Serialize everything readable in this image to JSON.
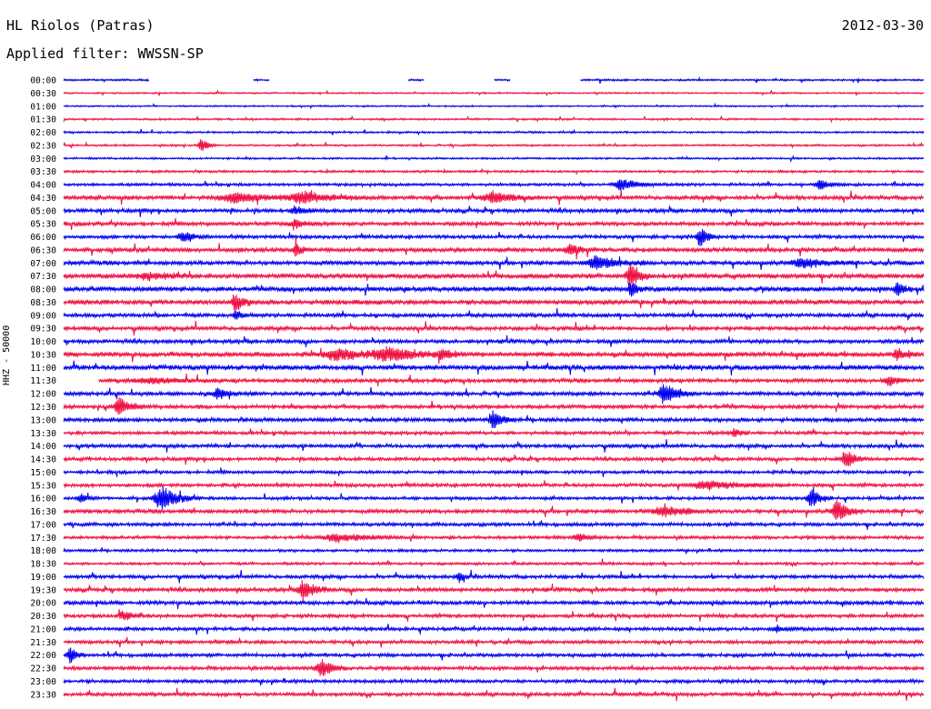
{
  "header": {
    "station": "HL Riolos (Patras)",
    "date": "2012-03-30",
    "filter_label": "Applied filter: WWSSN-SP"
  },
  "channel_label": "HHZ - 50000",
  "colors": {
    "blue": "#0000ee",
    "red": "#ee1144",
    "text": "#000000"
  },
  "chart_data": {
    "type": "line",
    "ylabel": "HHZ - 50000",
    "series_colors": [
      "blue",
      "red"
    ],
    "rows": [
      {
        "time": "00:00",
        "color": "blue",
        "noise": 1,
        "gaps": [
          [
            0.1,
            0.22
          ],
          [
            0.24,
            0.4
          ],
          [
            0.42,
            0.5
          ],
          [
            0.52,
            0.6
          ]
        ],
        "events": []
      },
      {
        "time": "00:30",
        "color": "red",
        "noise": 0.8,
        "gaps": [],
        "events": []
      },
      {
        "time": "01:00",
        "color": "blue",
        "noise": 0.8,
        "gaps": [],
        "events": []
      },
      {
        "time": "01:30",
        "color": "red",
        "noise": 1,
        "gaps": [],
        "events": []
      },
      {
        "time": "02:00",
        "color": "blue",
        "noise": 1,
        "gaps": [],
        "events": []
      },
      {
        "time": "02:30",
        "color": "red",
        "noise": 1,
        "gaps": [],
        "events": [
          {
            "x": 0.16,
            "a": 7,
            "w": 0.006
          }
        ]
      },
      {
        "time": "03:00",
        "color": "blue",
        "noise": 1,
        "gaps": [],
        "events": []
      },
      {
        "time": "03:30",
        "color": "red",
        "noise": 1.2,
        "gaps": [],
        "events": []
      },
      {
        "time": "04:00",
        "color": "blue",
        "noise": 1.5,
        "gaps": [],
        "events": [
          {
            "x": 0.65,
            "a": 6,
            "w": 0.015
          },
          {
            "x": 0.88,
            "a": 5,
            "w": 0.01
          }
        ]
      },
      {
        "time": "04:30",
        "color": "red",
        "noise": 2,
        "gaps": [],
        "events": [
          {
            "x": 0.2,
            "a": 5,
            "w": 0.03
          },
          {
            "x": 0.28,
            "a": 5,
            "w": 0.03
          },
          {
            "x": 0.5,
            "a": 6,
            "w": 0.02
          }
        ]
      },
      {
        "time": "05:00",
        "color": "blue",
        "noise": 2,
        "gaps": [],
        "events": [
          {
            "x": 0.27,
            "a": 4,
            "w": 0.01
          }
        ]
      },
      {
        "time": "05:30",
        "color": "red",
        "noise": 2,
        "gaps": [],
        "events": [
          {
            "x": 0.27,
            "a": 4,
            "w": 0.01
          }
        ]
      },
      {
        "time": "06:00",
        "color": "blue",
        "noise": 1.8,
        "gaps": [],
        "events": [
          {
            "x": 0.74,
            "a": 12,
            "w": 0.006
          },
          {
            "x": 0.14,
            "a": 5,
            "w": 0.01
          }
        ]
      },
      {
        "time": "06:30",
        "color": "red",
        "noise": 2.2,
        "gaps": [],
        "events": [
          {
            "x": 0.59,
            "a": 6,
            "w": 0.01
          },
          {
            "x": 0.27,
            "a": 8,
            "w": 0.005
          }
        ]
      },
      {
        "time": "07:00",
        "color": "blue",
        "noise": 2.2,
        "gaps": [],
        "events": [
          {
            "x": 0.62,
            "a": 6,
            "w": 0.02
          },
          {
            "x": 0.86,
            "a": 5,
            "w": 0.02
          }
        ]
      },
      {
        "time": "07:30",
        "color": "red",
        "noise": 2.5,
        "gaps": [],
        "events": [
          {
            "x": 0.66,
            "a": 14,
            "w": 0.008
          },
          {
            "x": 0.1,
            "a": 4,
            "w": 0.02
          }
        ]
      },
      {
        "time": "08:00",
        "color": "blue",
        "noise": 2.5,
        "gaps": [],
        "events": [
          {
            "x": 0.66,
            "a": 8,
            "w": 0.006
          },
          {
            "x": 0.97,
            "a": 7,
            "w": 0.006
          }
        ]
      },
      {
        "time": "08:30",
        "color": "red",
        "noise": 2.5,
        "gaps": [],
        "events": [
          {
            "x": 0.2,
            "a": 9,
            "w": 0.008
          }
        ]
      },
      {
        "time": "09:00",
        "color": "blue",
        "noise": 2,
        "gaps": [],
        "events": [
          {
            "x": 0.2,
            "a": 5,
            "w": 0.005
          }
        ]
      },
      {
        "time": "09:30",
        "color": "red",
        "noise": 2,
        "gaps": [],
        "events": []
      },
      {
        "time": "10:00",
        "color": "blue",
        "noise": 2,
        "gaps": [],
        "events": []
      },
      {
        "time": "10:30",
        "color": "red",
        "noise": 2.5,
        "gaps": [],
        "events": [
          {
            "x": 0.32,
            "a": 5,
            "w": 0.03
          },
          {
            "x": 0.38,
            "a": 6,
            "w": 0.03
          },
          {
            "x": 0.44,
            "a": 6,
            "w": 0.008
          },
          {
            "x": 0.97,
            "a": 6,
            "w": 0.008
          }
        ]
      },
      {
        "time": "11:00",
        "color": "blue",
        "noise": 2.5,
        "gaps": [],
        "events": []
      },
      {
        "time": "11:30",
        "color": "red",
        "noise": 2,
        "gaps": [
          [
            0,
            0.04
          ]
        ],
        "events": [
          {
            "x": 0.96,
            "a": 6,
            "w": 0.008
          },
          {
            "x": 0.1,
            "a": 3,
            "w": 0.03
          }
        ]
      },
      {
        "time": "12:00",
        "color": "blue",
        "noise": 2,
        "gaps": [],
        "events": [
          {
            "x": 0.7,
            "a": 12,
            "w": 0.012
          },
          {
            "x": 0.18,
            "a": 5,
            "w": 0.01
          }
        ]
      },
      {
        "time": "12:30",
        "color": "red",
        "noise": 2,
        "gaps": [],
        "events": [
          {
            "x": 0.065,
            "a": 9,
            "w": 0.01
          }
        ]
      },
      {
        "time": "13:00",
        "color": "blue",
        "noise": 2,
        "gaps": [],
        "events": [
          {
            "x": 0.5,
            "a": 10,
            "w": 0.008
          }
        ]
      },
      {
        "time": "13:30",
        "color": "red",
        "noise": 1.8,
        "gaps": [],
        "events": [
          {
            "x": 0.78,
            "a": 4,
            "w": 0.006
          }
        ]
      },
      {
        "time": "14:00",
        "color": "blue",
        "noise": 1.8,
        "gaps": [],
        "events": []
      },
      {
        "time": "14:30",
        "color": "red",
        "noise": 1.8,
        "gaps": [],
        "events": [
          {
            "x": 0.91,
            "a": 10,
            "w": 0.008
          }
        ]
      },
      {
        "time": "15:00",
        "color": "blue",
        "noise": 1.6,
        "gaps": [],
        "events": []
      },
      {
        "time": "15:30",
        "color": "red",
        "noise": 1.8,
        "gaps": [],
        "events": [
          {
            "x": 0.75,
            "a": 4,
            "w": 0.03
          }
        ]
      },
      {
        "time": "16:00",
        "color": "blue",
        "noise": 1.6,
        "gaps": [],
        "events": [
          {
            "x": 0.115,
            "a": 12,
            "w": 0.015
          },
          {
            "x": 0.87,
            "a": 10,
            "w": 0.008
          },
          {
            "x": 0.02,
            "a": 6,
            "w": 0.006
          }
        ]
      },
      {
        "time": "16:30",
        "color": "red",
        "noise": 2,
        "gaps": [],
        "events": [
          {
            "x": 0.9,
            "a": 12,
            "w": 0.01
          },
          {
            "x": 0.7,
            "a": 5,
            "w": 0.02
          }
        ]
      },
      {
        "time": "17:00",
        "color": "blue",
        "noise": 1.8,
        "gaps": [],
        "events": []
      },
      {
        "time": "17:30",
        "color": "red",
        "noise": 1.6,
        "gaps": [],
        "events": [
          {
            "x": 0.32,
            "a": 4,
            "w": 0.03
          },
          {
            "x": 0.6,
            "a": 4,
            "w": 0.01
          }
        ]
      },
      {
        "time": "18:00",
        "color": "blue",
        "noise": 1.4,
        "gaps": [],
        "events": []
      },
      {
        "time": "18:30",
        "color": "red",
        "noise": 1.4,
        "gaps": [],
        "events": []
      },
      {
        "time": "19:00",
        "color": "blue",
        "noise": 1.8,
        "gaps": [],
        "events": [
          {
            "x": 0.46,
            "a": 5,
            "w": 0.005
          }
        ]
      },
      {
        "time": "19:30",
        "color": "red",
        "noise": 2,
        "gaps": [],
        "events": [
          {
            "x": 0.28,
            "a": 11,
            "w": 0.01
          }
        ]
      },
      {
        "time": "20:00",
        "color": "blue",
        "noise": 2,
        "gaps": [],
        "events": []
      },
      {
        "time": "20:30",
        "color": "red",
        "noise": 1.8,
        "gaps": [],
        "events": [
          {
            "x": 0.07,
            "a": 5,
            "w": 0.01
          }
        ]
      },
      {
        "time": "21:00",
        "color": "blue",
        "noise": 1.8,
        "gaps": [],
        "events": [
          {
            "x": 0.83,
            "a": 3,
            "w": 0.01
          }
        ]
      },
      {
        "time": "21:30",
        "color": "red",
        "noise": 1.8,
        "gaps": [],
        "events": []
      },
      {
        "time": "22:00",
        "color": "blue",
        "noise": 1.8,
        "gaps": [],
        "events": [
          {
            "x": 0.008,
            "a": 8,
            "w": 0.006
          }
        ]
      },
      {
        "time": "22:30",
        "color": "red",
        "noise": 1.8,
        "gaps": [],
        "events": [
          {
            "x": 0.3,
            "a": 10,
            "w": 0.01
          }
        ]
      },
      {
        "time": "23:00",
        "color": "blue",
        "noise": 1.8,
        "gaps": [],
        "events": []
      },
      {
        "time": "23:30",
        "color": "red",
        "noise": 1.8,
        "gaps": [],
        "events": []
      }
    ]
  }
}
